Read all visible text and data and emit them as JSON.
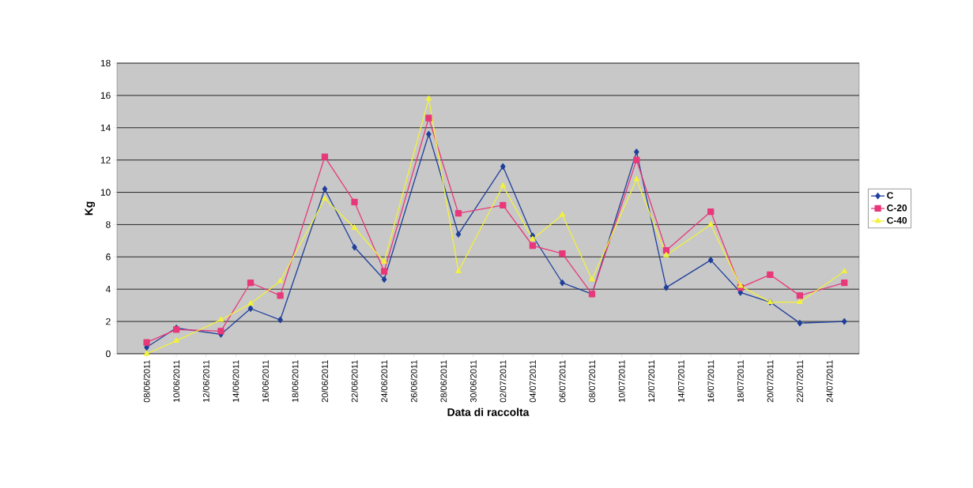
{
  "chart_data": {
    "type": "line",
    "xlabel": "Data di raccolta",
    "ylabel": "Kg",
    "x": [
      "2011-06-08",
      "2011-06-10",
      "2011-06-13",
      "2011-06-15",
      "2011-06-17",
      "2011-06-20",
      "2011-06-22",
      "2011-06-24",
      "2011-06-27",
      "2011-06-29",
      "2011-07-02",
      "2011-07-04",
      "2011-07-06",
      "2011-07-08",
      "2011-07-11",
      "2011-07-13",
      "2011-07-16",
      "2011-07-18",
      "2011-07-20",
      "2011-07-22",
      "2011-07-25"
    ],
    "series": [
      {
        "name": "C",
        "color": "#1f3f9a",
        "marker": "diamond",
        "values": [
          0.4,
          1.6,
          1.2,
          2.8,
          2.1,
          10.2,
          6.6,
          4.6,
          13.6,
          7.4,
          11.6,
          7.3,
          4.4,
          3.7,
          12.5,
          4.1,
          5.8,
          3.8,
          3.2,
          1.9,
          2.0
        ]
      },
      {
        "name": "C-20",
        "color": "#e8387a",
        "marker": "square",
        "values": [
          0.7,
          1.5,
          1.4,
          4.4,
          3.6,
          12.2,
          9.4,
          5.1,
          14.6,
          8.7,
          9.2,
          6.7,
          6.2,
          3.7,
          12.0,
          6.4,
          8.8,
          4.1,
          4.9,
          3.6,
          4.4
        ]
      },
      {
        "name": "C-40",
        "color": "#f2f23a",
        "marker": "triangle",
        "values": [
          0.0,
          0.8,
          2.1,
          3.1,
          4.5,
          9.6,
          7.8,
          5.7,
          15.8,
          5.1,
          10.4,
          7.1,
          8.6,
          4.6,
          10.8,
          6.1,
          8.0,
          4.2,
          3.2,
          3.2,
          5.1
        ]
      }
    ],
    "xlim": [
      "2011-06-06",
      "2011-07-26"
    ],
    "xticks": [
      {
        "value": "2011-06-08",
        "label": "08/06/2011"
      },
      {
        "value": "2011-06-10",
        "label": "10/06/2011"
      },
      {
        "value": "2011-06-12",
        "label": "12/06/2011"
      },
      {
        "value": "2011-06-14",
        "label": "14/06/2011"
      },
      {
        "value": "2011-06-16",
        "label": "16/06/2011"
      },
      {
        "value": "2011-06-18",
        "label": "18/06/2011"
      },
      {
        "value": "2011-06-20",
        "label": "20/06/2011"
      },
      {
        "value": "2011-06-22",
        "label": "22/06/2011"
      },
      {
        "value": "2011-06-24",
        "label": "24/06/2011"
      },
      {
        "value": "2011-06-26",
        "label": "26/06/2011"
      },
      {
        "value": "2011-06-28",
        "label": "28/06/2011"
      },
      {
        "value": "2011-06-30",
        "label": "30/06/2011"
      },
      {
        "value": "2011-07-02",
        "label": "02/07/2011"
      },
      {
        "value": "2011-07-04",
        "label": "04/07/2011"
      },
      {
        "value": "2011-07-06",
        "label": "06/07/2011"
      },
      {
        "value": "2011-07-08",
        "label": "08/07/2011"
      },
      {
        "value": "2011-07-10",
        "label": "10/07/2011"
      },
      {
        "value": "2011-07-12",
        "label": "12/07/2011"
      },
      {
        "value": "2011-07-14",
        "label": "14/07/2011"
      },
      {
        "value": "2011-07-16",
        "label": "16/07/2011"
      },
      {
        "value": "2011-07-18",
        "label": "18/07/2011"
      },
      {
        "value": "2011-07-20",
        "label": "20/07/2011"
      },
      {
        "value": "2011-07-22",
        "label": "22/07/2011"
      },
      {
        "value": "2011-07-24",
        "label": "24/07/2011"
      }
    ],
    "ylim": [
      0,
      18
    ],
    "yticks": [
      0,
      2,
      4,
      6,
      8,
      10,
      12,
      14,
      16,
      18
    ],
    "grid": "y",
    "legend": "right",
    "line_style": "solid"
  }
}
